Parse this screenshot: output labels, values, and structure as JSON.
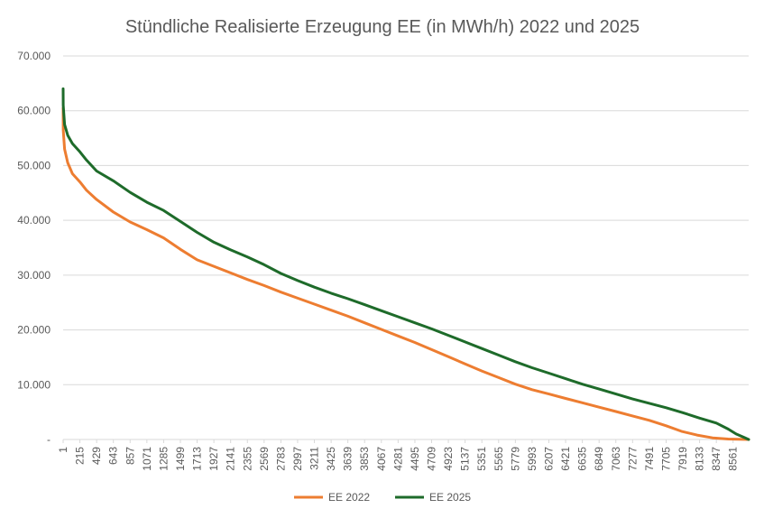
{
  "chart_data": {
    "type": "line",
    "title": "Stündliche Realisierte Erzeugung EE (in MWh/h) 2022 und 2025",
    "xlabel": "",
    "ylabel": "",
    "ylim": [
      0,
      70000
    ],
    "xlim": [
      1,
      8760
    ],
    "y_ticks": [
      0,
      10000,
      20000,
      30000,
      40000,
      50000,
      60000,
      70000
    ],
    "y_tick_labels": [
      "-",
      "10.000",
      "20.000",
      "30.000",
      "40.000",
      "50.000",
      "60.000",
      "70.000"
    ],
    "x_tick_labels": [
      "1",
      "215",
      "429",
      "643",
      "857",
      "1071",
      "1285",
      "1499",
      "1713",
      "1927",
      "2141",
      "2355",
      "2569",
      "2783",
      "2997",
      "3211",
      "3425",
      "3639",
      "3853",
      "4067",
      "4281",
      "4495",
      "4709",
      "4923",
      "5137",
      "5351",
      "5565",
      "5779",
      "5993",
      "6207",
      "6421",
      "6635",
      "6849",
      "7063",
      "7277",
      "7491",
      "7705",
      "7919",
      "8133",
      "8347",
      "8561"
    ],
    "legend_position": "bottom",
    "grid": true,
    "series": [
      {
        "name": "EE 2022",
        "color": "#ED7D31",
        "points": [
          [
            1,
            60500
          ],
          [
            2,
            56500
          ],
          [
            20,
            53000
          ],
          [
            60,
            50500
          ],
          [
            120,
            48500
          ],
          [
            215,
            47000
          ],
          [
            300,
            45500
          ],
          [
            429,
            43800
          ],
          [
            643,
            41500
          ],
          [
            857,
            39700
          ],
          [
            1071,
            38300
          ],
          [
            1285,
            36800
          ],
          [
            1499,
            34700
          ],
          [
            1713,
            32800
          ],
          [
            1927,
            31600
          ],
          [
            2141,
            30400
          ],
          [
            2355,
            29200
          ],
          [
            2569,
            28100
          ],
          [
            2783,
            26900
          ],
          [
            2997,
            25800
          ],
          [
            3211,
            24700
          ],
          [
            3425,
            23600
          ],
          [
            3639,
            22500
          ],
          [
            3853,
            21300
          ],
          [
            4067,
            20100
          ],
          [
            4281,
            18900
          ],
          [
            4495,
            17700
          ],
          [
            4709,
            16400
          ],
          [
            4923,
            15100
          ],
          [
            5137,
            13800
          ],
          [
            5351,
            12500
          ],
          [
            5565,
            11300
          ],
          [
            5779,
            10100
          ],
          [
            5993,
            9100
          ],
          [
            6207,
            8300
          ],
          [
            6421,
            7500
          ],
          [
            6635,
            6700
          ],
          [
            6849,
            5900
          ],
          [
            7063,
            5100
          ],
          [
            7277,
            4300
          ],
          [
            7491,
            3500
          ],
          [
            7705,
            2500
          ],
          [
            7900,
            1500
          ],
          [
            8100,
            800
          ],
          [
            8300,
            300
          ],
          [
            8500,
            80
          ],
          [
            8760,
            0
          ]
        ]
      },
      {
        "name": "EE 2025",
        "color": "#1E6B2A",
        "points": [
          [
            1,
            64000
          ],
          [
            2,
            61000
          ],
          [
            20,
            57500
          ],
          [
            60,
            55500
          ],
          [
            120,
            54000
          ],
          [
            215,
            52500
          ],
          [
            300,
            51000
          ],
          [
            429,
            49000
          ],
          [
            643,
            47200
          ],
          [
            857,
            45100
          ],
          [
            1071,
            43300
          ],
          [
            1285,
            41800
          ],
          [
            1499,
            39800
          ],
          [
            1713,
            37800
          ],
          [
            1927,
            36000
          ],
          [
            2141,
            34600
          ],
          [
            2355,
            33300
          ],
          [
            2569,
            31900
          ],
          [
            2783,
            30300
          ],
          [
            2997,
            29000
          ],
          [
            3211,
            27800
          ],
          [
            3425,
            26700
          ],
          [
            3639,
            25700
          ],
          [
            3853,
            24600
          ],
          [
            4067,
            23500
          ],
          [
            4281,
            22400
          ],
          [
            4495,
            21300
          ],
          [
            4709,
            20200
          ],
          [
            4923,
            19000
          ],
          [
            5137,
            17800
          ],
          [
            5351,
            16600
          ],
          [
            5565,
            15400
          ],
          [
            5779,
            14200
          ],
          [
            5993,
            13100
          ],
          [
            6207,
            12100
          ],
          [
            6421,
            11100
          ],
          [
            6635,
            10100
          ],
          [
            6849,
            9200
          ],
          [
            7063,
            8300
          ],
          [
            7277,
            7400
          ],
          [
            7491,
            6600
          ],
          [
            7705,
            5800
          ],
          [
            7919,
            4900
          ],
          [
            8133,
            3900
          ],
          [
            8347,
            3000
          ],
          [
            8500,
            1900
          ],
          [
            8600,
            1000
          ],
          [
            8700,
            400
          ],
          [
            8760,
            0
          ]
        ]
      }
    ]
  }
}
